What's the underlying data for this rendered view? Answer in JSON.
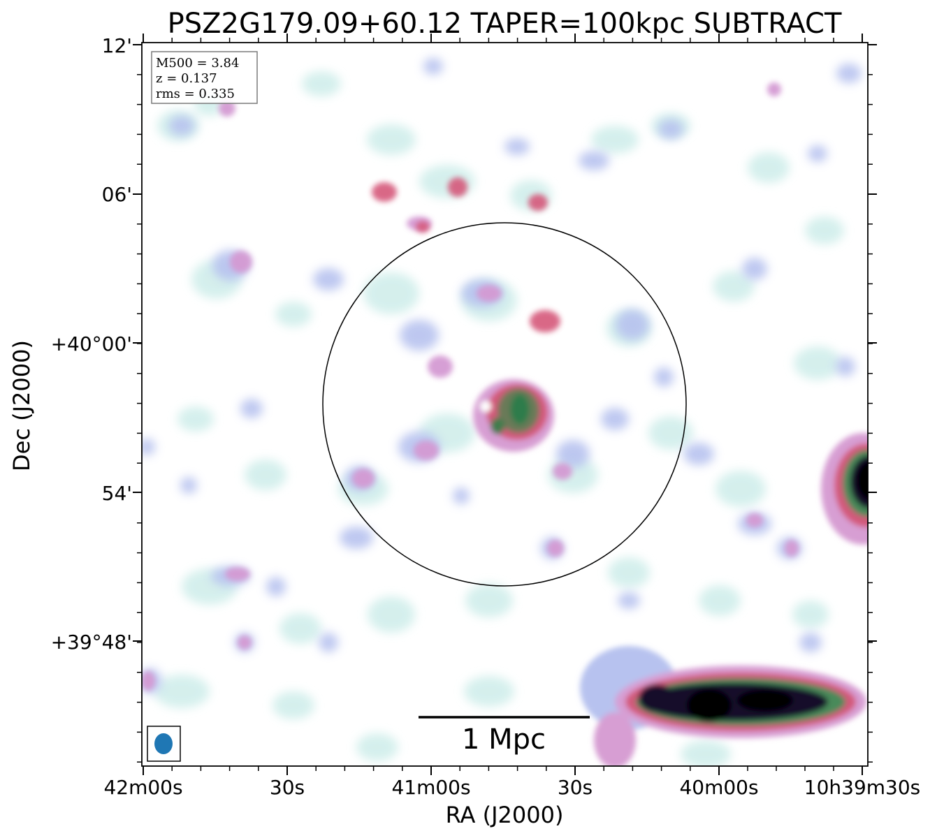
{
  "figure": {
    "title": "PSZ2G179.09+60.12 TAPER=100kpc SUBTRACT",
    "x_axis_label": "RA (J2000)",
    "y_axis_label": "Dec (J2000)",
    "x_tick_labels": [
      "42m00s",
      "30s",
      "41m00s",
      "30s",
      "40m00s",
      "10h39m30s"
    ],
    "y_tick_labels": [
      "12'",
      "06'",
      "+40°00'",
      "54'",
      "+39°48'"
    ],
    "info_box": {
      "line1": "M500 = 3.84",
      "line2": "z = 0.137",
      "line3": "rms = 0.335"
    },
    "scale_bar_label": "1 Mpc",
    "beam_color": "#1f77b4",
    "colormap": [
      "#ffffff",
      "#cdeeea",
      "#b3c0ee",
      "#d79ed3",
      "#d55a7c",
      "#3f8a5c",
      "#13092a",
      "#000000"
    ]
  }
}
